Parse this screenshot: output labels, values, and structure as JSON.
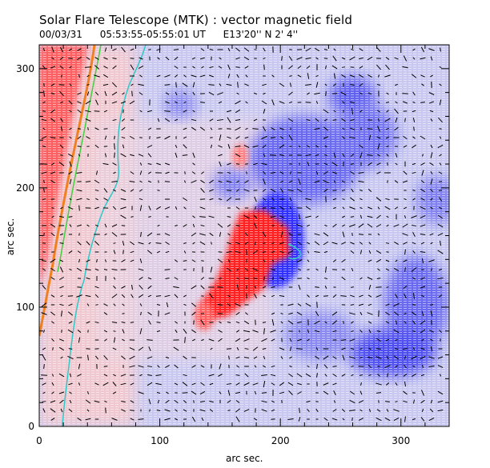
{
  "title": "Solar Flare Telescope (MTK) : vector magnetic field",
  "subtitle": {
    "date": "00/03/31",
    "time_range": "05:53:55-05:55:01 UT",
    "position": "E13'20''  N 2' 4''"
  },
  "axes": {
    "xlabel": "arc sec.",
    "ylabel": "arc sec.",
    "x_ticks": [
      "0",
      "100",
      "200",
      "300"
    ],
    "y_ticks": [
      "0",
      "100",
      "200",
      "300"
    ],
    "x_range": [
      0,
      340
    ],
    "y_range": [
      0,
      320
    ]
  },
  "colors": {
    "positive": "#ff3030",
    "negative": "#4040ff",
    "contour_green": "#40d040",
    "contour_cyan": "#30c8c8",
    "limb": "#f08020"
  }
}
